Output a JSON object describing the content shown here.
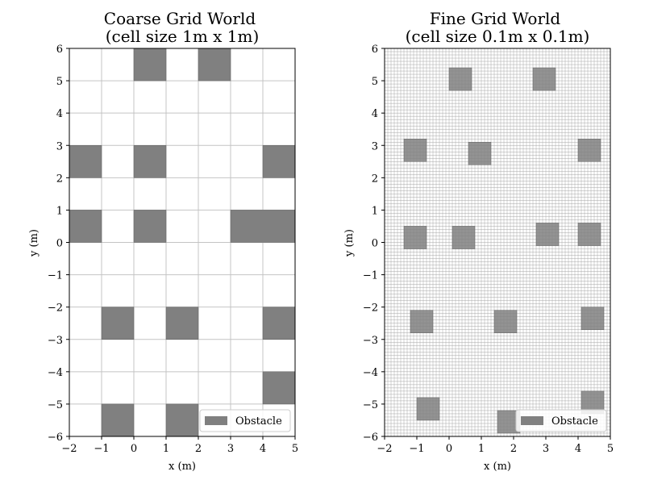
{
  "chart_data": [
    {
      "type": "heatmap",
      "title": "Coarse Grid World",
      "subtitle": "(cell size 1m x 1m)",
      "xlabel": "x (m)",
      "ylabel": "y (m)",
      "xlim": [
        -2,
        5
      ],
      "ylim": [
        -6,
        6
      ],
      "xticks": [
        -2,
        -1,
        0,
        1,
        2,
        3,
        4,
        5
      ],
      "yticks": [
        -6,
        -5,
        -4,
        -3,
        -2,
        -1,
        0,
        1,
        2,
        3,
        4,
        5,
        6
      ],
      "cell_size": 1,
      "grid": true,
      "legend": {
        "label": "Obstacle",
        "position": "lower-right"
      },
      "obstacle_color": "#808080",
      "obstacles": [
        {
          "x": 0,
          "y": 5,
          "w": 1,
          "h": 1
        },
        {
          "x": 2,
          "y": 5,
          "w": 1,
          "h": 1
        },
        {
          "x": -2,
          "y": 2,
          "w": 1,
          "h": 1
        },
        {
          "x": 0,
          "y": 2,
          "w": 1,
          "h": 1
        },
        {
          "x": 4,
          "y": 2,
          "w": 1,
          "h": 1
        },
        {
          "x": -2,
          "y": 0,
          "w": 1,
          "h": 1
        },
        {
          "x": 0,
          "y": 0,
          "w": 1,
          "h": 1
        },
        {
          "x": 3,
          "y": 0,
          "w": 2,
          "h": 1
        },
        {
          "x": -1,
          "y": -3,
          "w": 1,
          "h": 1
        },
        {
          "x": 1,
          "y": -3,
          "w": 1,
          "h": 1
        },
        {
          "x": 4,
          "y": -3,
          "w": 1,
          "h": 1
        },
        {
          "x": 4,
          "y": -5,
          "w": 1,
          "h": 1
        },
        {
          "x": -1,
          "y": -6,
          "w": 1,
          "h": 1
        },
        {
          "x": 1,
          "y": -6,
          "w": 1,
          "h": 1
        }
      ]
    },
    {
      "type": "heatmap",
      "title": "Fine Grid World",
      "subtitle": "(cell size 0.1m x 0.1m)",
      "xlabel": "x (m)",
      "ylabel": "y (m)",
      "xlim": [
        -2,
        5
      ],
      "ylim": [
        -6,
        6
      ],
      "xticks": [
        -2,
        -1,
        0,
        1,
        2,
        3,
        4,
        5
      ],
      "yticks": [
        -6,
        -5,
        -4,
        -3,
        -2,
        -1,
        0,
        1,
        2,
        3,
        4,
        5,
        6
      ],
      "cell_size": 0.1,
      "grid": true,
      "legend": {
        "label": "Obstacle",
        "position": "lower-right"
      },
      "obstacle_color": "#808080",
      "obstacles": [
        {
          "x": 0.0,
          "y": 4.7,
          "w": 0.7,
          "h": 0.7
        },
        {
          "x": 2.6,
          "y": 4.7,
          "w": 0.7,
          "h": 0.7
        },
        {
          "x": -1.4,
          "y": 2.5,
          "w": 0.7,
          "h": 0.7
        },
        {
          "x": 0.6,
          "y": 2.4,
          "w": 0.7,
          "h": 0.7
        },
        {
          "x": 4.0,
          "y": 2.5,
          "w": 0.7,
          "h": 0.7
        },
        {
          "x": -1.4,
          "y": -0.2,
          "w": 0.7,
          "h": 0.7
        },
        {
          "x": 0.1,
          "y": -0.2,
          "w": 0.7,
          "h": 0.7
        },
        {
          "x": 2.7,
          "y": -0.1,
          "w": 0.7,
          "h": 0.7
        },
        {
          "x": 4.0,
          "y": -0.1,
          "w": 0.7,
          "h": 0.7
        },
        {
          "x": -1.2,
          "y": -2.8,
          "w": 0.7,
          "h": 0.7
        },
        {
          "x": 1.4,
          "y": -2.8,
          "w": 0.7,
          "h": 0.7
        },
        {
          "x": 4.1,
          "y": -2.7,
          "w": 0.7,
          "h": 0.7
        },
        {
          "x": -1.0,
          "y": -5.5,
          "w": 0.7,
          "h": 0.7
        },
        {
          "x": 4.1,
          "y": -5.3,
          "w": 0.7,
          "h": 0.7
        },
        {
          "x": 1.5,
          "y": -5.9,
          "w": 0.7,
          "h": 0.7
        }
      ]
    }
  ]
}
